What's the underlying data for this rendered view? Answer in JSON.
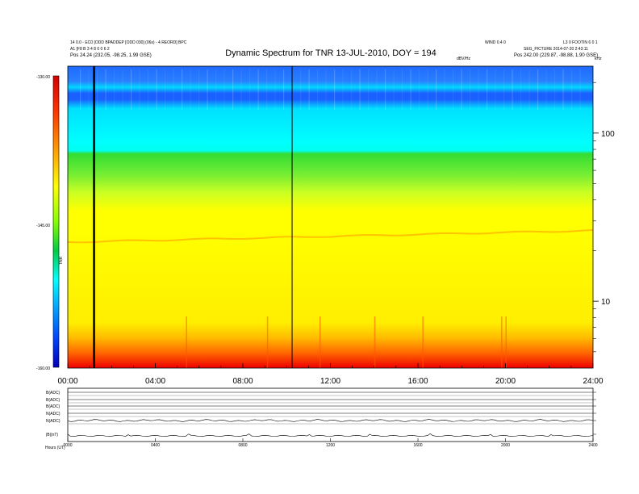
{
  "header": {
    "title": "Dynamic Spectrum for TNR 13-JUL-2010, DOY = 194",
    "left_line1": "14 0.0 - EC0 [ODD BPADDEP [ODD 030] (06s) - 4 REORD] BPC",
    "left_line2": "A1 [F8 B 3 4 8 0 0 6 2",
    "left_pos": "Pos  24.24 (232.05, -98.25, 1.99 GSE)",
    "right_top_left": "WIND 0.4 0",
    "right_top_right": "L3 0 FOOTIN 6 0 1",
    "right_line2": "SEG_PICTURE 2014-07-20 2:43:11",
    "right_pos": "Pos  242.00 (229.87, -98.88, 1.90 GSE)",
    "freq_unit_label": "dBV/Hz",
    "khz_label": "kHz"
  },
  "colorbar": {
    "ticks": [
      "-130.00",
      "-145.00",
      "-160.00"
    ],
    "side_label": "TNR",
    "colors": [
      "#d40000",
      "#ff3300",
      "#ff9900",
      "#ffff00",
      "#88ff00",
      "#00cc44",
      "#00ffff",
      "#00a0ff",
      "#0044ff",
      "#0000bb"
    ]
  },
  "chart_data": {
    "type": "heatmap",
    "title": "Dynamic Spectrum for TNR 13-JUL-2010, DOY = 194",
    "xlabel": "",
    "ylabel": "",
    "x_range_hours": [
      0,
      24
    ],
    "x_tick_labels": [
      "00:00",
      "04:00",
      "08:00",
      "12:00",
      "16:00",
      "20:00",
      "24:00"
    ],
    "y_scale": "log",
    "y_unit": "kHz",
    "y_range": [
      4,
      250
    ],
    "y_tick_labels": [
      "10",
      "100"
    ],
    "colorbar_range_dB": [
      -160,
      -130
    ],
    "colorbar_tick_labels": [
      "-130.00",
      "-145.00",
      "-160.00"
    ],
    "data_gaps_hours": [
      1.2,
      10.25
    ],
    "bands": [
      {
        "freq_from_khz": 4,
        "freq_to_khz": 4.5,
        "level": "red"
      },
      {
        "freq_from_khz": 4.5,
        "freq_to_khz": 6,
        "level": "orange"
      },
      {
        "freq_from_khz": 6,
        "freq_to_khz": 40,
        "level": "yellow"
      },
      {
        "freq_from_khz": 40,
        "freq_to_khz": 70,
        "level": "green"
      },
      {
        "freq_from_khz": 70,
        "freq_to_khz": 170,
        "level": "cyan"
      },
      {
        "freq_from_khz": 170,
        "freq_to_khz": 250,
        "level": "blue"
      }
    ]
  },
  "lower_panel": {
    "row_labels": [
      "B(ADC)",
      "B(ADC)",
      "B(ADC)",
      "N(ADC)",
      "N(ADC)",
      "|B|(nT)"
    ],
    "x_tick_labels": [
      "0000",
      "0400",
      "0800",
      "1200",
      "1600",
      "2000",
      "2400"
    ],
    "footer_left": "Hours   (UT)"
  }
}
